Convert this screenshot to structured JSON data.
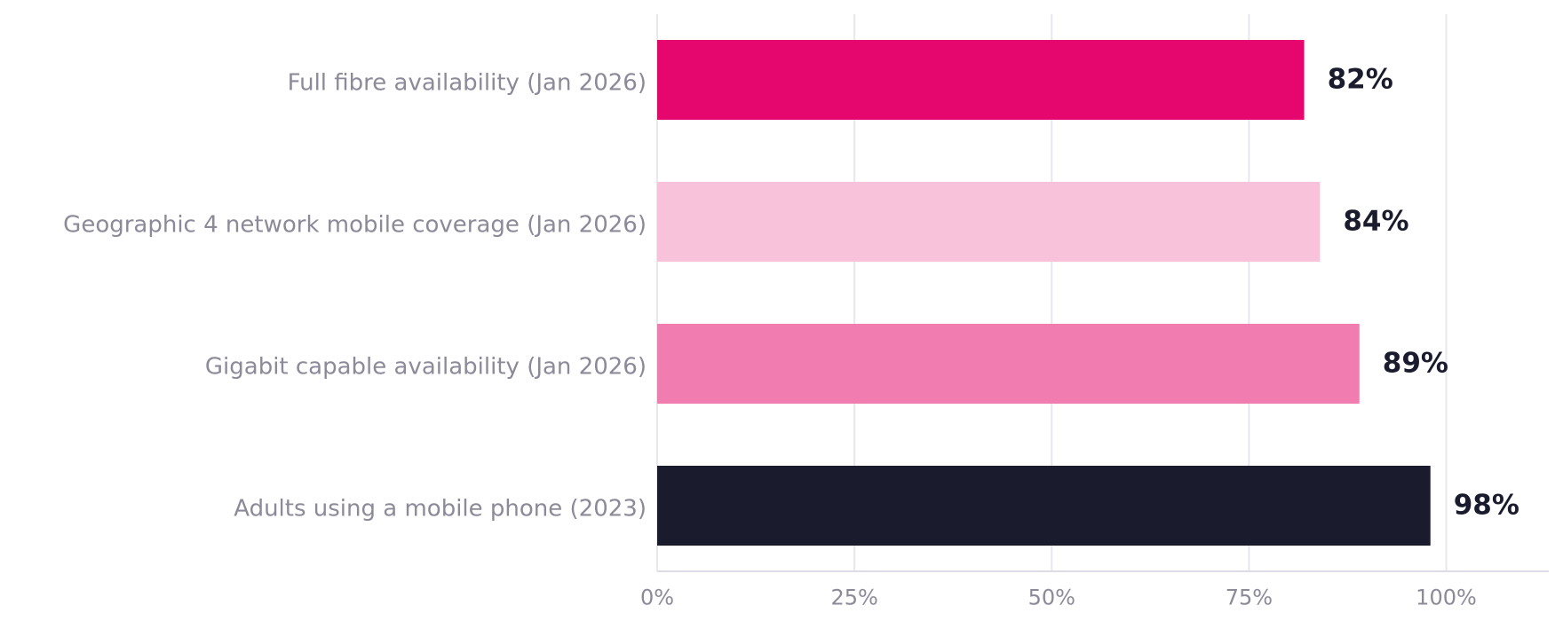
{
  "chart_data": {
    "type": "bar",
    "orientation": "horizontal",
    "categories": [
      "Full fibre availability (Jan 2026)",
      "Geographic 4 network mobile coverage (Jan 2026)",
      "Gigabit capable availability (Jan 2026)",
      "Adults using a mobile phone (2023)"
    ],
    "values": [
      82,
      84,
      89,
      98
    ],
    "value_labels": [
      "82%",
      "84%",
      "89%",
      "98%"
    ],
    "bar_colors": [
      "#e6076e",
      "#f8c3da",
      "#f07cb0",
      "#1b1b2e"
    ],
    "xlim": [
      0,
      113
    ],
    "x_ticks": [
      0,
      25,
      50,
      75,
      100
    ],
    "x_tick_labels": [
      "0%",
      "25%",
      "50%",
      "75%",
      "100%"
    ],
    "grid": true,
    "legend": false,
    "title": "",
    "xlabel": "",
    "ylabel": ""
  }
}
